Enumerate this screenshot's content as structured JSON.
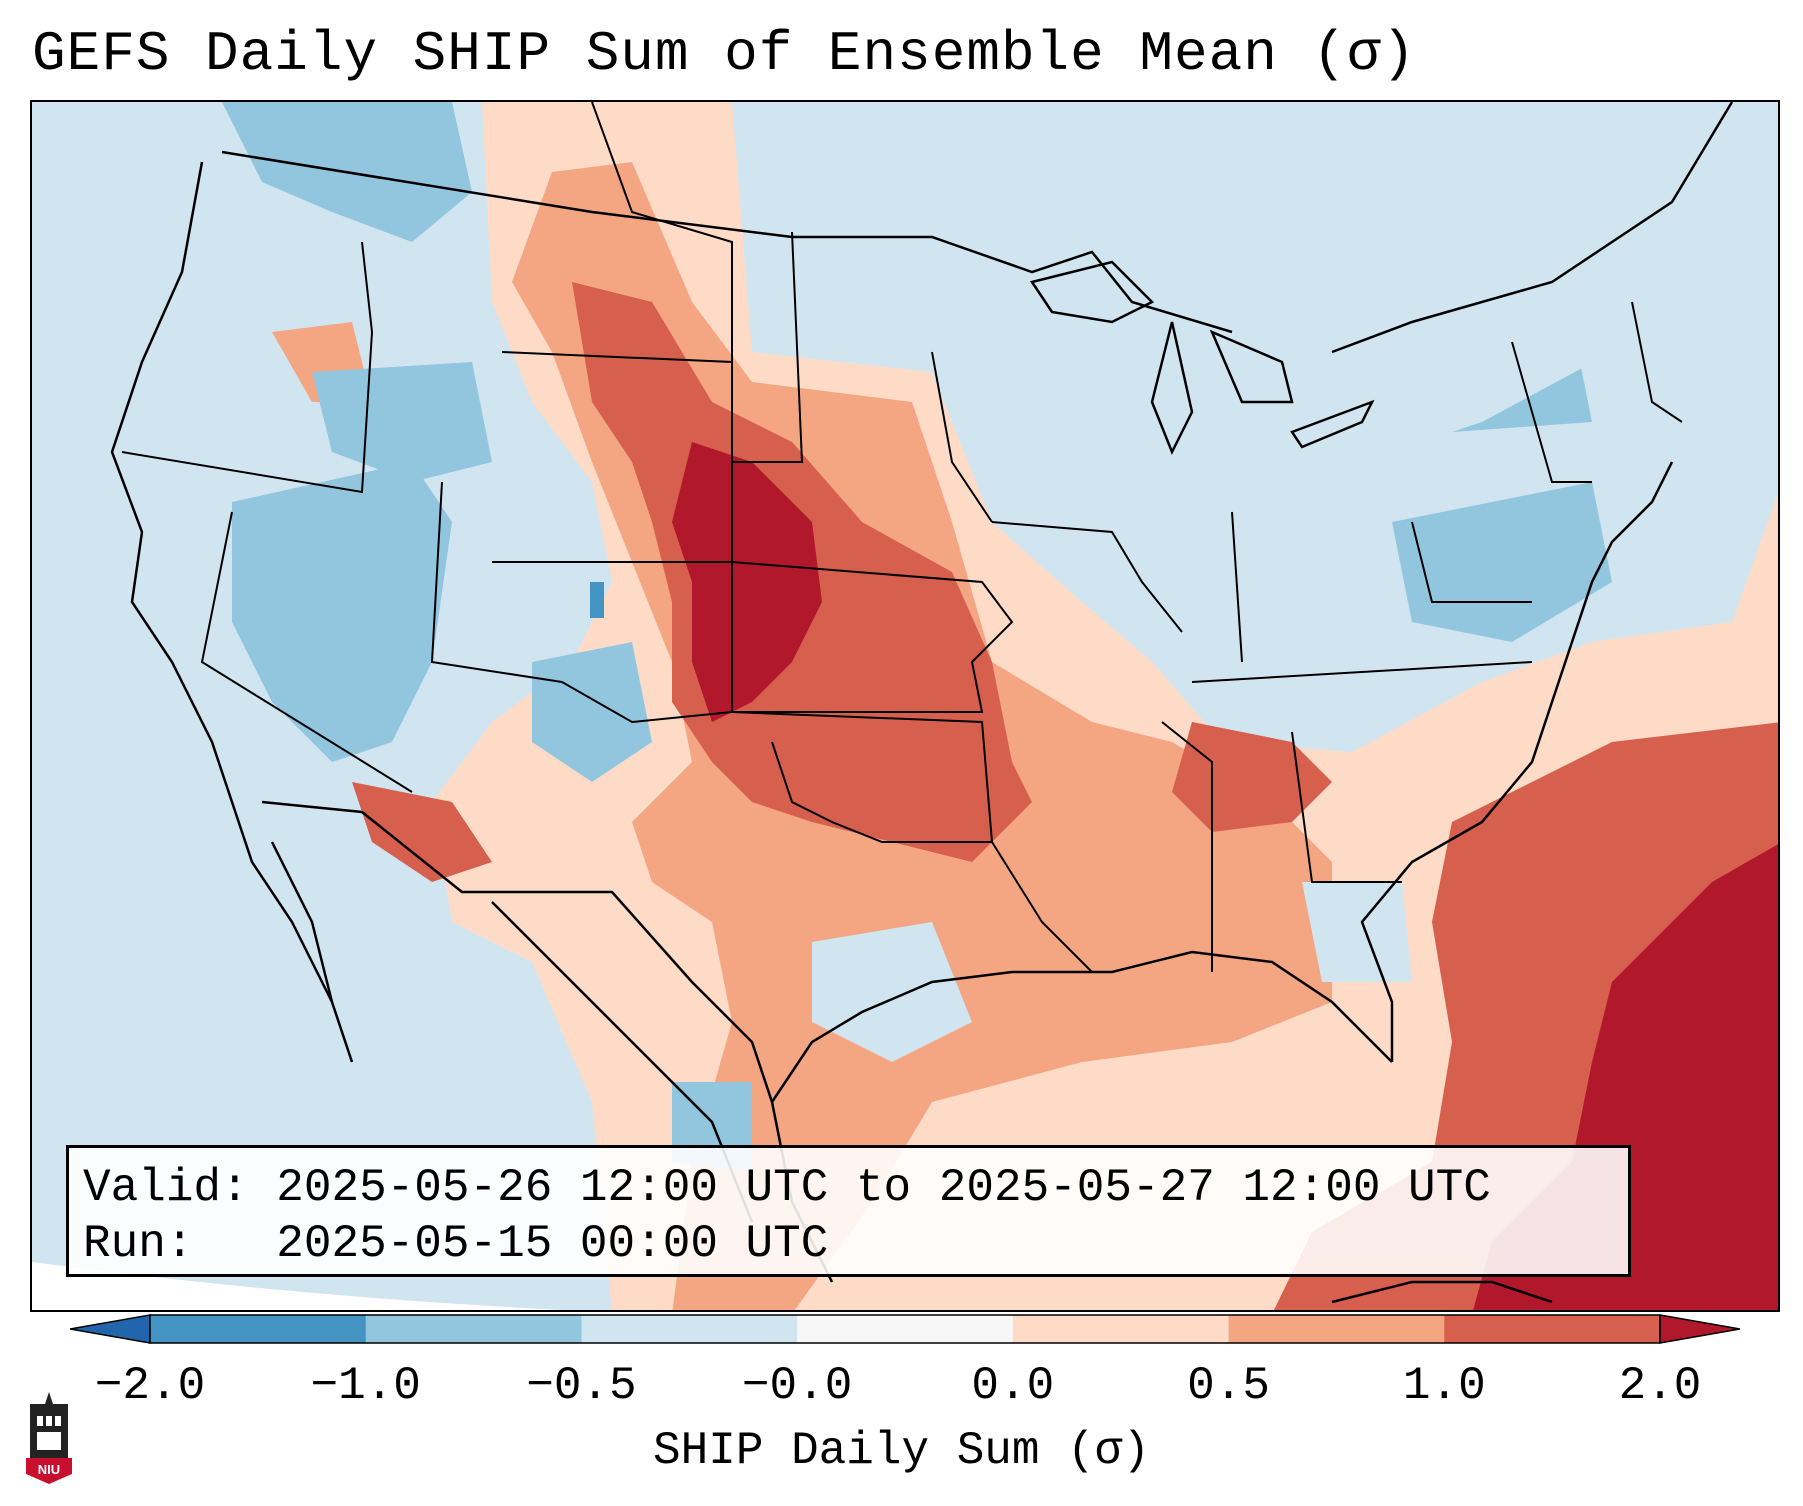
{
  "title": "GEFS Daily SHIP Sum of Ensemble Mean (σ)",
  "info": {
    "valid_label": "Valid:",
    "valid_value": "2025-05-26 12:00 UTC to 2025-05-27 12:00 UTC",
    "run_label": "Run:",
    "run_value": "2025-05-15 00:00 UTC"
  },
  "colorbar": {
    "label": "SHIP Daily Sum (σ)",
    "ticks": [
      "−2.0",
      "−1.0",
      "−0.5",
      "−0.0",
      "0.0",
      "0.5",
      "1.0",
      "2.0"
    ],
    "colors": [
      "#4393c3",
      "#92c5de",
      "#d1e5f0",
      "#f7f7f7",
      "#fddbc7",
      "#f4a582",
      "#d6604d"
    ],
    "extend_low_color": "#2166ac",
    "extend_high_color": "#b2182b"
  },
  "map": {
    "ocean_color": "#d1e5f0",
    "regions": {
      "neg_strong": "#4393c3",
      "neg_mod": "#92c5de",
      "neg_weak": "#d1e5f0",
      "pos_weak": "#fddbc7",
      "pos_mod": "#f4a582",
      "pos_strong": "#d6604d",
      "pos_extreme": "#b2182b"
    }
  },
  "logo": {
    "text": "NIU"
  }
}
